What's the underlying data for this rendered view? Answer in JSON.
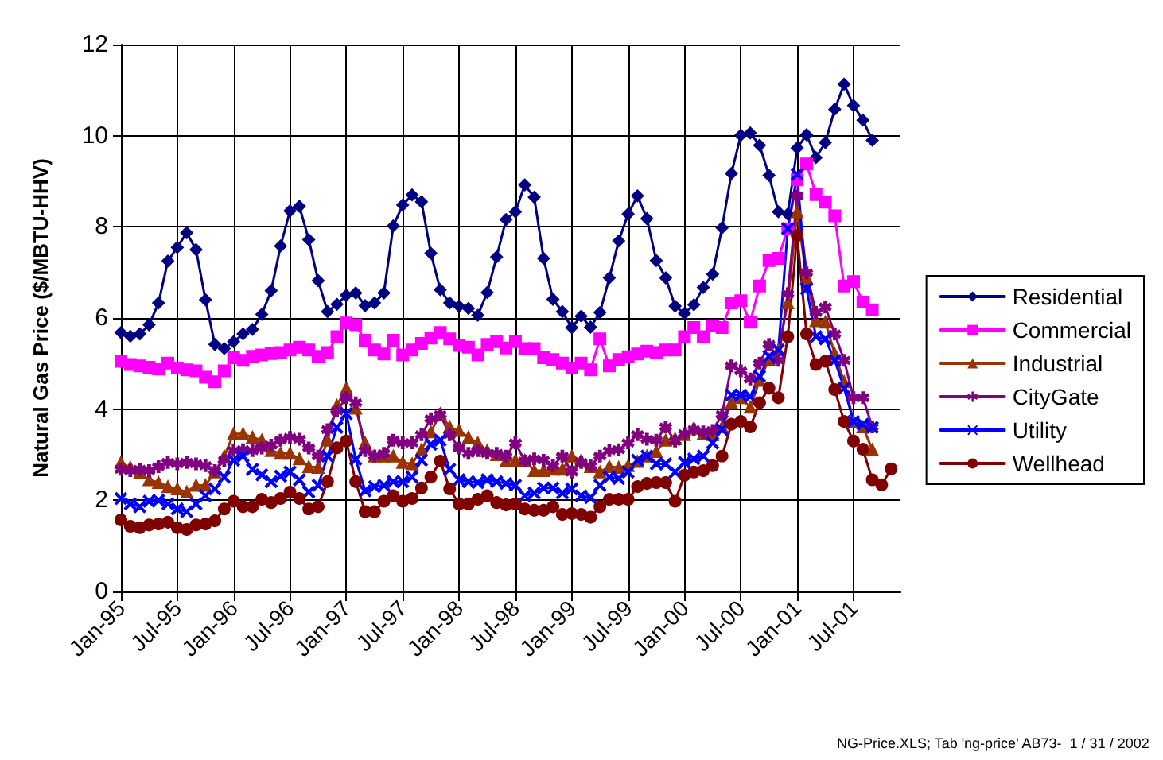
{
  "chart_data": {
    "type": "line",
    "ylabel": "Natural Gas Price ($/MBTU-HHV)",
    "categories": [
      "Jan-95",
      null,
      null,
      null,
      null,
      null,
      "Jul-95",
      null,
      null,
      null,
      null,
      null,
      "Jan-96",
      null,
      null,
      null,
      null,
      null,
      "Jul-96",
      null,
      null,
      null,
      null,
      null,
      "Jan-97",
      null,
      null,
      null,
      null,
      null,
      "Jul-97",
      null,
      null,
      null,
      null,
      null,
      "Jan-98",
      null,
      null,
      null,
      null,
      null,
      "Jul-98",
      null,
      null,
      null,
      null,
      null,
      "Jan-99",
      null,
      null,
      null,
      null,
      null,
      "Jul-99",
      null,
      null,
      null,
      null,
      null,
      "Jan-00",
      null,
      null,
      null,
      null,
      null,
      "Jul-00",
      null,
      null,
      null,
      null,
      null,
      "Jan-01",
      null,
      null,
      null,
      null,
      null,
      "Jul-01",
      null,
      null,
      null,
      null,
      null
    ],
    "series": [
      {
        "name": "Residential",
        "color": "#000080",
        "marker": "diamond",
        "values": [
          5.68,
          5.6,
          5.65,
          5.85,
          6.33,
          7.25,
          7.55,
          7.87,
          7.5,
          6.4,
          5.42,
          5.33,
          5.48,
          5.65,
          5.75,
          6.08,
          6.6,
          7.58,
          8.35,
          8.45,
          7.72,
          6.82,
          6.14,
          6.3,
          6.5,
          6.55,
          6.27,
          6.33,
          6.55,
          8.02,
          8.48,
          8.7,
          8.55,
          7.42,
          6.62,
          6.33,
          6.26,
          6.21,
          6.06,
          6.56,
          7.34,
          8.16,
          8.33,
          8.92,
          8.65,
          7.31,
          6.41,
          6.14,
          5.79,
          6.04,
          5.8,
          6.12,
          6.88,
          7.69,
          8.28,
          8.68,
          8.18,
          7.26,
          6.88,
          6.26,
          6.1,
          6.29,
          6.67,
          6.96,
          7.98,
          9.17,
          10.01,
          10.06,
          9.79,
          9.13,
          8.33,
          8.28,
          9.73,
          10.02,
          9.52,
          9.85,
          10.58,
          11.13,
          10.66,
          10.34,
          9.9,
          null,
          null,
          null
        ]
      },
      {
        "name": "Commercial",
        "color": "#ff00ff",
        "marker": "square",
        "values": [
          5.05,
          4.98,
          4.95,
          4.92,
          4.88,
          5.01,
          4.9,
          4.86,
          4.84,
          4.7,
          4.6,
          4.84,
          5.13,
          5.07,
          5.16,
          5.19,
          5.22,
          5.24,
          5.3,
          5.36,
          5.3,
          5.16,
          5.24,
          5.59,
          5.89,
          5.85,
          5.51,
          5.3,
          5.21,
          5.51,
          5.19,
          5.3,
          5.44,
          5.56,
          5.68,
          5.54,
          5.4,
          5.36,
          5.19,
          5.42,
          5.48,
          5.34,
          5.48,
          5.33,
          5.33,
          5.13,
          5.09,
          5.01,
          4.9,
          5.01,
          4.86,
          5.54,
          4.95,
          5.09,
          5.15,
          5.21,
          5.27,
          5.24,
          5.3,
          5.3,
          5.59,
          5.79,
          5.59,
          5.83,
          5.79,
          6.33,
          6.38,
          5.91,
          6.7,
          7.26,
          7.31,
          7.96,
          9.03,
          9.38,
          8.71,
          8.54,
          8.24,
          6.7,
          6.8,
          6.35,
          6.18,
          null,
          null,
          null
        ]
      },
      {
        "name": "Industrial",
        "color": "#993300",
        "marker": "triangle",
        "values": [
          2.83,
          2.72,
          2.6,
          2.45,
          2.39,
          2.3,
          2.25,
          2.18,
          2.33,
          2.33,
          2.62,
          2.97,
          3.46,
          3.46,
          3.38,
          3.32,
          3.09,
          3.03,
          3.03,
          2.91,
          2.74,
          2.72,
          3.32,
          4.08,
          4.46,
          4.02,
          3.26,
          2.97,
          2.97,
          2.97,
          2.83,
          2.8,
          3.11,
          3.5,
          3.9,
          3.61,
          3.53,
          3.38,
          3.26,
          3.09,
          3.0,
          2.86,
          2.88,
          2.88,
          2.65,
          2.65,
          2.68,
          2.68,
          2.97,
          2.88,
          2.74,
          2.62,
          2.74,
          2.72,
          2.76,
          2.85,
          2.97,
          3.07,
          3.32,
          3.35,
          3.44,
          3.58,
          3.46,
          3.44,
          3.61,
          4.14,
          4.25,
          4.04,
          4.63,
          5.09,
          5.3,
          6.33,
          8.33,
          6.88,
          5.94,
          5.91,
          5.21,
          4.6,
          3.73,
          3.61,
          3.11,
          null,
          null,
          null
        ]
      },
      {
        "name": "CityGate",
        "color": "#800080",
        "marker": "star",
        "values": [
          2.68,
          2.65,
          2.68,
          2.65,
          2.74,
          2.83,
          2.8,
          2.83,
          2.8,
          2.76,
          2.65,
          2.88,
          3.09,
          3.11,
          3.09,
          3.15,
          3.21,
          3.32,
          3.38,
          3.34,
          3.15,
          2.97,
          3.55,
          3.96,
          4.25,
          4.14,
          3.09,
          2.97,
          3.03,
          3.32,
          3.26,
          3.26,
          3.44,
          3.79,
          3.88,
          3.44,
          3.15,
          3.03,
          3.09,
          3.03,
          3.03,
          2.97,
          3.26,
          2.86,
          2.91,
          2.88,
          2.76,
          2.97,
          2.62,
          2.83,
          2.76,
          2.97,
          3.09,
          3.11,
          3.26,
          3.44,
          3.34,
          3.32,
          3.61,
          3.3,
          3.46,
          3.55,
          3.5,
          3.53,
          3.88,
          4.95,
          4.84,
          4.66,
          5.01,
          5.42,
          5.07,
          6.53,
          8.68,
          6.99,
          6.12,
          6.24,
          5.65,
          5.07,
          4.25,
          4.25,
          3.61,
          null,
          null,
          null
        ]
      },
      {
        "name": "Utility",
        "color": "#0000ff",
        "marker": "cross",
        "values": [
          2.04,
          1.92,
          1.86,
          1.98,
          2.0,
          1.92,
          1.81,
          1.75,
          1.92,
          2.1,
          2.25,
          2.51,
          2.88,
          2.97,
          2.68,
          2.56,
          2.41,
          2.53,
          2.62,
          2.45,
          2.18,
          2.33,
          2.97,
          3.6,
          3.9,
          2.9,
          2.21,
          2.3,
          2.33,
          2.41,
          2.41,
          2.51,
          2.88,
          3.23,
          3.32,
          2.68,
          2.45,
          2.41,
          2.39,
          2.45,
          2.41,
          2.37,
          2.33,
          2.1,
          2.16,
          2.27,
          2.27,
          2.16,
          2.25,
          2.1,
          2.06,
          2.33,
          2.51,
          2.48,
          2.62,
          2.88,
          2.97,
          2.8,
          2.8,
          2.62,
          2.83,
          2.91,
          2.97,
          3.26,
          3.55,
          4.31,
          4.31,
          4.28,
          4.72,
          5.16,
          5.3,
          7.96,
          9.15,
          6.64,
          5.59,
          5.54,
          5.07,
          4.46,
          3.73,
          3.67,
          3.6,
          null,
          null,
          null
        ]
      },
      {
        "name": "Wellhead",
        "color": "#800000",
        "marker": "circle",
        "values": [
          1.57,
          1.43,
          1.4,
          1.46,
          1.48,
          1.52,
          1.4,
          1.36,
          1.46,
          1.48,
          1.55,
          1.81,
          1.98,
          1.86,
          1.86,
          2.02,
          1.95,
          2.04,
          2.18,
          2.04,
          1.81,
          1.86,
          2.41,
          3.15,
          3.3,
          2.41,
          1.75,
          1.75,
          1.98,
          2.1,
          1.98,
          2.04,
          2.27,
          2.51,
          2.86,
          2.25,
          1.92,
          1.92,
          2.02,
          2.1,
          1.95,
          1.9,
          1.92,
          1.81,
          1.78,
          1.78,
          1.86,
          1.69,
          1.71,
          1.69,
          1.63,
          1.86,
          2.02,
          2.02,
          2.02,
          2.3,
          2.37,
          2.39,
          2.39,
          1.98,
          2.55,
          2.62,
          2.65,
          2.76,
          2.97,
          3.67,
          3.73,
          3.61,
          4.14,
          4.46,
          4.25,
          5.59,
          7.81,
          5.65,
          4.98,
          5.05,
          4.43,
          3.73,
          3.3,
          3.12,
          2.45,
          2.34,
          2.69,
          null
        ]
      }
    ],
    "ylim": [
      0,
      12
    ],
    "yticks": [
      0,
      2,
      4,
      6,
      8,
      10,
      12
    ],
    "grid": true,
    "legend": "right",
    "line_style": "solid",
    "annotations": [
      "NG-Price.XLS; Tab 'ng-price' AB73-  1 / 31 / 2002"
    ]
  }
}
